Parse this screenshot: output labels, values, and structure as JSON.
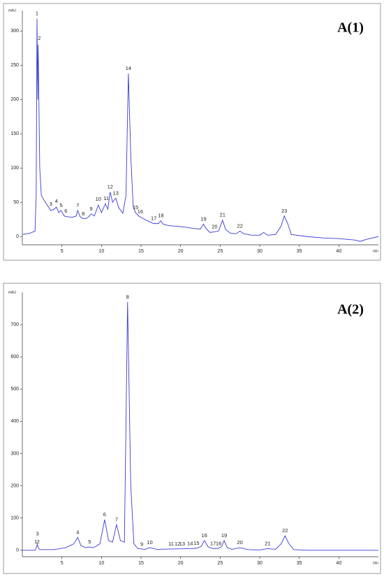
{
  "chart_data": [
    {
      "type": "line",
      "title": "A(1)",
      "y_label": "mAU",
      "x_label": "min",
      "color": "#3b3bd6",
      "xlim": [
        0,
        45
      ],
      "ylim": [
        -12,
        330
      ],
      "xticks": [
        5,
        10,
        15,
        20,
        25,
        30,
        35,
        40
      ],
      "yticks": [
        0,
        50,
        100,
        150,
        200,
        250,
        300
      ],
      "x": [
        0,
        1,
        1.6,
        1.75,
        1.85,
        1.95,
        2.0,
        2.1,
        2.2,
        2.4,
        2.8,
        3.2,
        3.6,
        4.0,
        4.3,
        4.6,
        4.9,
        5.3,
        5.7,
        6.3,
        6.8,
        7.0,
        7.3,
        7.7,
        8.2,
        8.7,
        9.1,
        9.6,
        10.0,
        10.5,
        10.8,
        11.1,
        11.4,
        11.8,
        12.2,
        12.7,
        13.1,
        13.4,
        13.7,
        14.0,
        14.3,
        14.7,
        15.3,
        16,
        16.6,
        17.2,
        17.5,
        17.8,
        18.5,
        19.5,
        20.5,
        21.5,
        22.5,
        22.9,
        23.2,
        23.7,
        24.3,
        24.8,
        25.3,
        25.7,
        26.3,
        27,
        27.5,
        28,
        29,
        30,
        30.5,
        31,
        32,
        32.7,
        33.1,
        33.5,
        34,
        36,
        38,
        40,
        42,
        42.7,
        43.5,
        45
      ],
      "values": [
        3,
        5,
        8,
        60,
        318,
        200,
        280,
        190,
        100,
        60,
        52,
        45,
        38,
        40,
        43,
        35,
        38,
        30,
        29,
        28,
        30,
        38,
        29,
        26,
        27,
        33,
        30,
        46,
        35,
        48,
        40,
        65,
        50,
        56,
        42,
        34,
        60,
        238,
        120,
        45,
        35,
        30,
        26,
        22,
        19,
        19,
        23,
        18,
        16,
        15,
        14,
        12,
        11,
        18,
        12,
        6,
        7,
        8,
        24,
        10,
        5,
        4,
        8,
        4,
        2,
        2,
        6,
        2,
        3,
        15,
        30,
        20,
        3,
        0,
        -2,
        -3,
        -5,
        -7,
        -4,
        0
      ],
      "annotations": [
        {
          "text": "1",
          "x": 1.85,
          "y": 318
        },
        {
          "text": "2",
          "x": 2.15,
          "y": 282
        },
        {
          "text": "3",
          "x": 3.6,
          "y": 40
        },
        {
          "text": "4",
          "x": 4.3,
          "y": 44
        },
        {
          "text": "5",
          "x": 4.9,
          "y": 38
        },
        {
          "text": "6",
          "x": 5.5,
          "y": 30
        },
        {
          "text": "7",
          "x": 7.0,
          "y": 38
        },
        {
          "text": "8",
          "x": 7.7,
          "y": 26
        },
        {
          "text": "9",
          "x": 8.7,
          "y": 33
        },
        {
          "text": "10",
          "x": 9.6,
          "y": 47
        },
        {
          "text": "11",
          "x": 10.6,
          "y": 48
        },
        {
          "text": "12",
          "x": 11.1,
          "y": 65
        },
        {
          "text": "13",
          "x": 11.8,
          "y": 56
        },
        {
          "text": "14",
          "x": 13.4,
          "y": 238
        },
        {
          "text": "15",
          "x": 14.3,
          "y": 35
        },
        {
          "text": "16",
          "x": 14.9,
          "y": 29
        },
        {
          "text": "17",
          "x": 16.6,
          "y": 19
        },
        {
          "text": "18",
          "x": 17.5,
          "y": 23
        },
        {
          "text": "19",
          "x": 22.9,
          "y": 18
        },
        {
          "text": "20",
          "x": 24.3,
          "y": 7
        },
        {
          "text": "21",
          "x": 25.3,
          "y": 24
        },
        {
          "text": "22",
          "x": 27.5,
          "y": 8
        },
        {
          "text": "23",
          "x": 33.1,
          "y": 30
        }
      ]
    },
    {
      "type": "line",
      "title": "A(2)",
      "y_label": "mAU",
      "x_label": "min",
      "color": "#3b3bd6",
      "xlim": [
        0,
        45
      ],
      "ylim": [
        -20,
        800
      ],
      "xticks": [
        5,
        10,
        15,
        20,
        25,
        30,
        35,
        40
      ],
      "yticks": [
        0,
        100,
        200,
        300,
        400,
        500,
        600,
        700
      ],
      "x": [
        0,
        1.6,
        1.8,
        1.9,
        2.0,
        2.2,
        4,
        5.5,
        6.5,
        7,
        7.4,
        8,
        8.5,
        9,
        9.8,
        10.4,
        10.9,
        11.4,
        11.9,
        12.4,
        12.9,
        13.3,
        13.7,
        14.1,
        14.6,
        15.5,
        16.1,
        17,
        19,
        21,
        22,
        22.6,
        23,
        23.5,
        24.1,
        24.8,
        25.2,
        25.5,
        25.9,
        26.5,
        27.5,
        28.5,
        30,
        31,
        32,
        32.7,
        33.2,
        33.7,
        34.3,
        36,
        45
      ],
      "values": [
        0,
        0,
        10,
        20,
        8,
        2,
        2,
        8,
        20,
        40,
        15,
        8,
        10,
        8,
        20,
        95,
        30,
        25,
        80,
        30,
        25,
        770,
        200,
        20,
        5,
        3,
        8,
        3,
        4,
        5,
        6,
        12,
        30,
        10,
        5,
        6,
        12,
        30,
        8,
        3,
        8,
        2,
        1,
        5,
        3,
        20,
        45,
        20,
        2,
        0,
        0
      ],
      "annotations": [
        {
          "text": "1",
          "x": 1.7,
          "y": 10
        },
        {
          "text": "2",
          "x": 2.0,
          "y": 10
        },
        {
          "text": "3",
          "x": 1.9,
          "y": 35
        },
        {
          "text": "4",
          "x": 7.0,
          "y": 40
        },
        {
          "text": "5",
          "x": 8.5,
          "y": 10
        },
        {
          "text": "6",
          "x": 10.4,
          "y": 95
        },
        {
          "text": "7",
          "x": 11.9,
          "y": 80
        },
        {
          "text": "8",
          "x": 13.3,
          "y": 770
        },
        {
          "text": "9",
          "x": 15.1,
          "y": 3
        },
        {
          "text": "10",
          "x": 16.1,
          "y": 8
        },
        {
          "text": "11",
          "x": 18.8,
          "y": 4
        },
        {
          "text": "12",
          "x": 19.6,
          "y": 4
        },
        {
          "text": "13",
          "x": 20.2,
          "y": 4
        },
        {
          "text": "14",
          "x": 21.2,
          "y": 5
        },
        {
          "text": "15",
          "x": 22.0,
          "y": 6
        },
        {
          "text": "16",
          "x": 23.0,
          "y": 30
        },
        {
          "text": "17",
          "x": 24.1,
          "y": 5
        },
        {
          "text": "18",
          "x": 24.8,
          "y": 5
        },
        {
          "text": "19",
          "x": 25.5,
          "y": 30
        },
        {
          "text": "20",
          "x": 27.5,
          "y": 8
        },
        {
          "text": "21",
          "x": 31.0,
          "y": 5
        },
        {
          "text": "22",
          "x": 33.2,
          "y": 45
        }
      ]
    }
  ]
}
